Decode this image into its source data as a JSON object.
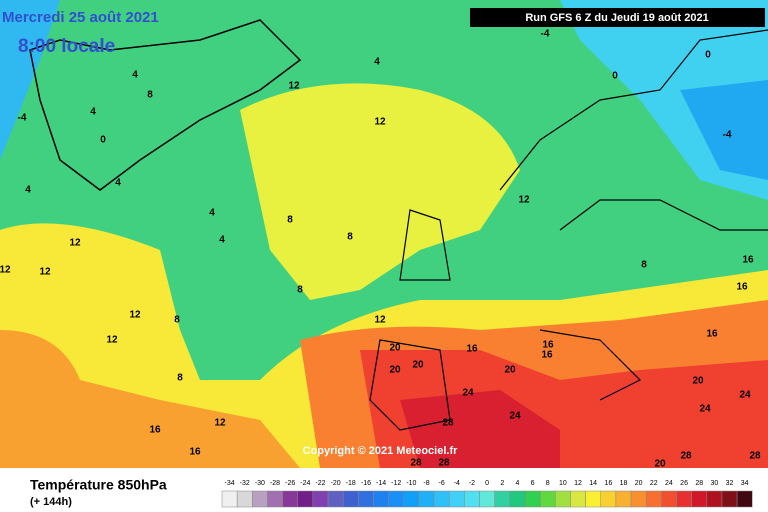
{
  "header": {
    "date": "Mercredi 25 août 2021",
    "local_time": "8:00 locale",
    "run": "Run GFS 6 Z du Jeudi 19 août 2021"
  },
  "copyright": "Copyright © 2021 Meteociel.fr",
  "footer": {
    "title": "Température 850hPa",
    "lead": "(+ 144h)"
  },
  "scale": {
    "values": [
      -34,
      -32,
      -30,
      -28,
      -26,
      -24,
      -22,
      -20,
      -18,
      -16,
      -14,
      -12,
      -10,
      -8,
      -6,
      -4,
      -2,
      0,
      2,
      4,
      6,
      8,
      10,
      12,
      14,
      16,
      18,
      20,
      22,
      24,
      26,
      28,
      30,
      32,
      34
    ],
    "colors": [
      "#f0f0f0",
      "#d8d8d8",
      "#b8a0c0",
      "#a070b0",
      "#883898",
      "#702088",
      "#8040b0",
      "#6060c0",
      "#4060d0",
      "#3070e0",
      "#2080f0",
      "#1890f8",
      "#10a0f8",
      "#20b0f8",
      "#30c0f8",
      "#40d0f8",
      "#50e0f0",
      "#60e8d8",
      "#30d0a0",
      "#20c880",
      "#30d050",
      "#60d840",
      "#a0e040",
      "#d8e840",
      "#f8f030",
      "#f8d030",
      "#f8b030",
      "#f89030",
      "#f87030",
      "#f05030",
      "#e83030",
      "#d01828",
      "#b01020",
      "#801018",
      "#400810"
    ]
  },
  "contour_labels": [
    "4",
    "8",
    "4",
    "0",
    "4",
    "4",
    "4",
    "4",
    "12",
    "8",
    "8",
    "8",
    "12",
    "12",
    "12",
    "12",
    "8",
    "12",
    "12",
    "8",
    "12",
    "16",
    "16",
    "20",
    "20",
    "20",
    "16",
    "20",
    "24",
    "24",
    "28",
    "28",
    "28",
    "24",
    "24",
    "20",
    "28",
    "20",
    "28",
    "16",
    "16",
    "16",
    "16",
    "16",
    "12",
    "8",
    "0",
    "0",
    "-4",
    "-4",
    "-4",
    "12",
    "4"
  ]
}
